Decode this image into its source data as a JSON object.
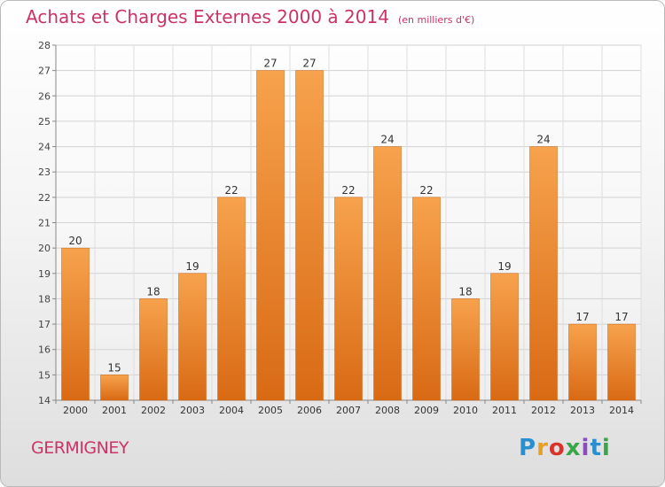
{
  "chart_data": {
    "type": "bar",
    "title": "Achats et Charges Externes 2000 à 2014",
    "unit_note": "(en milliers d'€)",
    "categories": [
      "2000",
      "2001",
      "2002",
      "2003",
      "2004",
      "2005",
      "2006",
      "2007",
      "2008",
      "2009",
      "2010",
      "2011",
      "2012",
      "2013",
      "2014"
    ],
    "values": [
      20,
      15,
      18,
      19,
      22,
      27,
      27,
      22,
      24,
      22,
      18,
      19,
      24,
      17,
      17
    ],
    "ylim": [
      14,
      28
    ],
    "yticks": [
      14,
      15,
      16,
      17,
      18,
      19,
      20,
      21,
      22,
      23,
      24,
      25,
      26,
      27,
      28
    ],
    "grid": true,
    "bar_color": "#f0983a"
  },
  "commune": "GERMIGNEY",
  "brand": "Proxiti"
}
